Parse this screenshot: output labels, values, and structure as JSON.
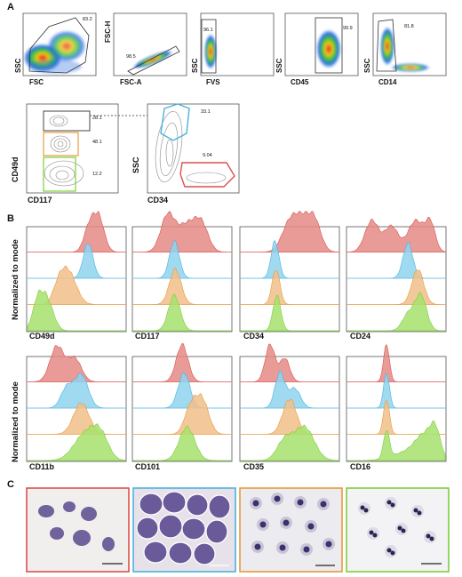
{
  "panels": {
    "a": "A",
    "b": "B",
    "c": "C"
  },
  "colors": {
    "red": "#d9534f",
    "red_fill": "#e58a86",
    "blue": "#4ab3e0",
    "blue_fill": "#8fd3ef",
    "orange": "#e89a3c",
    "orange_fill": "#f1c08a",
    "green": "#7ccf3b",
    "green_fill": "#a6e26d"
  },
  "flow_top": [
    {
      "x": "FSC",
      "y": "SSC",
      "gate": "83.2"
    },
    {
      "x": "FSC-A",
      "y": "FSC-H",
      "gate": "98.5"
    },
    {
      "x": "FVS",
      "y": "SSC",
      "gate": "96.1"
    },
    {
      "x": "CD45",
      "y": "SSC",
      "gate": "99.9"
    },
    {
      "x": "CD14",
      "y": "SSC",
      "gate": "81.8"
    }
  ],
  "flow_cd117": {
    "x": "CD117",
    "y": "CD49d",
    "gates": [
      "28.1",
      "48.1",
      "12.2"
    ]
  },
  "flow_cd34": {
    "x": "CD34",
    "y": "SSC",
    "gates": [
      "33.1",
      "9.04"
    ]
  },
  "hist_ylabel": "Normalized to mode",
  "hist_row1": [
    "CD49d",
    "CD117",
    "CD34",
    "CD24"
  ],
  "hist_row2": [
    "CD11b",
    "CD101",
    "CD35",
    "CD16"
  ]
}
